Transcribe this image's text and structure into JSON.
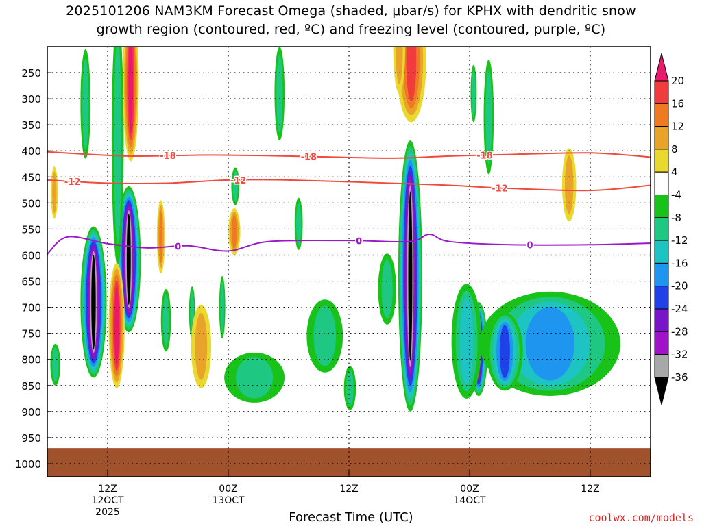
{
  "title": {
    "line1": "2025101206 NAM3KM Forecast Omega (shaded, μbar/s) for KPHX with dendritic snow",
    "line2": "growth region (contoured, red, ºC) and freezing level (contoured, purple, ºC)"
  },
  "credit": "coolwx.com/models",
  "chart_data": {
    "type": "heatmap",
    "xlabel": "Forecast Time (UTC)",
    "ylabel": "",
    "x_ticks": [
      {
        "hour": 12,
        "lines": [
          "12Z",
          "12OCT",
          "2025"
        ]
      },
      {
        "hour": 24,
        "lines": [
          "00Z",
          "13OCT"
        ]
      },
      {
        "hour": 36,
        "lines": [
          "12Z"
        ]
      },
      {
        "hour": 48,
        "lines": [
          "00Z",
          "14OCT"
        ]
      },
      {
        "hour": 60,
        "lines": [
          "12Z"
        ]
      }
    ],
    "x_range_hours": [
      6,
      66
    ],
    "y_range_hPa": [
      200,
      1025
    ],
    "y_ticks": [
      250,
      300,
      350,
      400,
      450,
      500,
      550,
      600,
      650,
      700,
      750,
      800,
      850,
      900,
      950,
      1000
    ],
    "grid": "dotted",
    "colorbar": {
      "labels": [
        "20",
        "16",
        "12",
        "8",
        "4",
        "-4",
        "-8",
        "-12",
        "-16",
        "-20",
        "-24",
        "-28",
        "-32",
        "-36"
      ],
      "colors": [
        "#e8196f",
        "#f03c3c",
        "#ee7a22",
        "#e9a32a",
        "#e9d82e",
        "#ffffff",
        "#18c218",
        "#1ec882",
        "#1ec4c4",
        "#1e96f0",
        "#2040e8",
        "#7a14c8",
        "#a012c8",
        "#a8a8a8",
        "#000000"
      ]
    },
    "contours": [
      {
        "color": "#f04a3c",
        "points": [
          [
            6,
            402
          ],
          [
            14,
            410
          ],
          [
            22,
            408
          ],
          [
            30,
            410
          ],
          [
            40,
            414
          ],
          [
            46,
            410
          ],
          [
            52,
            407
          ],
          [
            60,
            404
          ],
          [
            66,
            412
          ]
        ],
        "labels": [
          {
            "text": "-18",
            "hour": 18
          },
          {
            "text": "-18",
            "hour": 32
          },
          {
            "text": "-18",
            "hour": 49.5
          }
        ]
      },
      {
        "color": "#f04a3c",
        "points": [
          [
            6,
            456
          ],
          [
            12,
            462
          ],
          [
            18,
            462
          ],
          [
            24,
            456
          ],
          [
            30,
            456
          ],
          [
            40,
            462
          ],
          [
            46,
            466
          ],
          [
            52,
            472
          ],
          [
            60,
            476
          ],
          [
            66,
            466
          ]
        ],
        "labels": [
          {
            "text": "-12",
            "hour": 8.5
          },
          {
            "text": "-12",
            "hour": 25
          },
          {
            "text": "-12",
            "hour": 51
          }
        ]
      },
      {
        "color": "#9a18c8",
        "points": [
          [
            6,
            598
          ],
          [
            8,
            565
          ],
          [
            12,
            578
          ],
          [
            16,
            586
          ],
          [
            20,
            582
          ],
          [
            24,
            592
          ],
          [
            28,
            574
          ],
          [
            36,
            572
          ],
          [
            42,
            574
          ],
          [
            44,
            560
          ],
          [
            46,
            574
          ],
          [
            52,
            580
          ],
          [
            60,
            580
          ],
          [
            66,
            577
          ]
        ],
        "labels": [
          {
            "text": "0",
            "hour": 19
          },
          {
            "text": "0",
            "hour": 37
          },
          {
            "text": "0",
            "hour": 54
          }
        ]
      }
    ],
    "omega_cells": [
      {
        "hour": 10.6,
        "p": 690,
        "dh": 1.3,
        "dp": 145,
        "min": -36
      },
      {
        "hour": 14.1,
        "p": 608,
        "dh": 1.2,
        "dp": 140,
        "min": -36
      },
      {
        "hour": 42.1,
        "p": 640,
        "dh": 1.2,
        "dp": 260,
        "min": -36
      },
      {
        "hour": 48.9,
        "p": 780,
        "dh": 0.9,
        "dp": 90,
        "min": -28
      },
      {
        "hour": 9.8,
        "p": 310,
        "dh": 0.5,
        "dp": 105,
        "min": -8
      },
      {
        "hour": 13.0,
        "p": 380,
        "dh": 0.6,
        "dp": 240,
        "min": -8
      },
      {
        "hour": 17.8,
        "p": 725,
        "dh": 0.5,
        "dp": 60,
        "min": -8
      },
      {
        "hour": 20.4,
        "p": 710,
        "dh": 0.3,
        "dp": 50,
        "min": -8
      },
      {
        "hour": 23.4,
        "p": 700,
        "dh": 0.3,
        "dp": 60,
        "min": -8
      },
      {
        "hour": 24.7,
        "p": 468,
        "dh": 0.4,
        "dp": 36,
        "min": -8
      },
      {
        "hour": 29.1,
        "p": 290,
        "dh": 0.5,
        "dp": 90,
        "min": -8
      },
      {
        "hour": 31.0,
        "p": 540,
        "dh": 0.4,
        "dp": 50,
        "min": -8
      },
      {
        "hour": 33.6,
        "p": 755,
        "dh": 1.8,
        "dp": 70,
        "min": -8
      },
      {
        "hour": 26.6,
        "p": 835,
        "dh": 3.0,
        "dp": 48,
        "min": -8
      },
      {
        "hour": 36.1,
        "p": 855,
        "dh": 0.6,
        "dp": 42,
        "min": -8
      },
      {
        "hour": 39.8,
        "p": 665,
        "dh": 0.9,
        "dp": 68,
        "min": -8
      },
      {
        "hour": 47.7,
        "p": 765,
        "dh": 1.5,
        "dp": 110,
        "min": -12
      },
      {
        "hour": 56.0,
        "p": 770,
        "dh": 7.0,
        "dp": 100,
        "min": -16
      },
      {
        "hour": 51.5,
        "p": 785,
        "dh": 1.8,
        "dp": 75,
        "min": -20
      },
      {
        "hour": 49.9,
        "p": 335,
        "dh": 0.5,
        "dp": 110,
        "min": -8
      },
      {
        "hour": 48.4,
        "p": 290,
        "dh": 0.3,
        "dp": 55,
        "min": -8
      },
      {
        "hour": 6.8,
        "p": 810,
        "dh": 0.5,
        "dp": 40,
        "min": -8
      }
    ],
    "positive_cells": [
      {
        "hour": 14.3,
        "p": 270,
        "dh": 0.8,
        "dp": 150,
        "max": 20
      },
      {
        "hour": 12.9,
        "p": 735,
        "dh": 0.8,
        "dp": 120,
        "max": 20
      },
      {
        "hour": 42.2,
        "p": 225,
        "dh": 1.5,
        "dp": 120,
        "max": 16
      },
      {
        "hour": 41.0,
        "p": 200,
        "dh": 0.6,
        "dp": 90,
        "max": 8
      },
      {
        "hour": 17.3,
        "p": 565,
        "dh": 0.4,
        "dp": 70,
        "max": 12
      },
      {
        "hour": 21.3,
        "p": 775,
        "dh": 1.0,
        "dp": 80,
        "max": 8
      },
      {
        "hour": 24.6,
        "p": 555,
        "dh": 0.6,
        "dp": 45,
        "max": 12
      },
      {
        "hour": 6.7,
        "p": 480,
        "dh": 0.35,
        "dp": 50,
        "max": 8
      },
      {
        "hour": 57.9,
        "p": 465,
        "dh": 0.7,
        "dp": 70,
        "max": 8
      }
    ],
    "ground": {
      "from_p": 970,
      "color": "#a0522d"
    }
  }
}
